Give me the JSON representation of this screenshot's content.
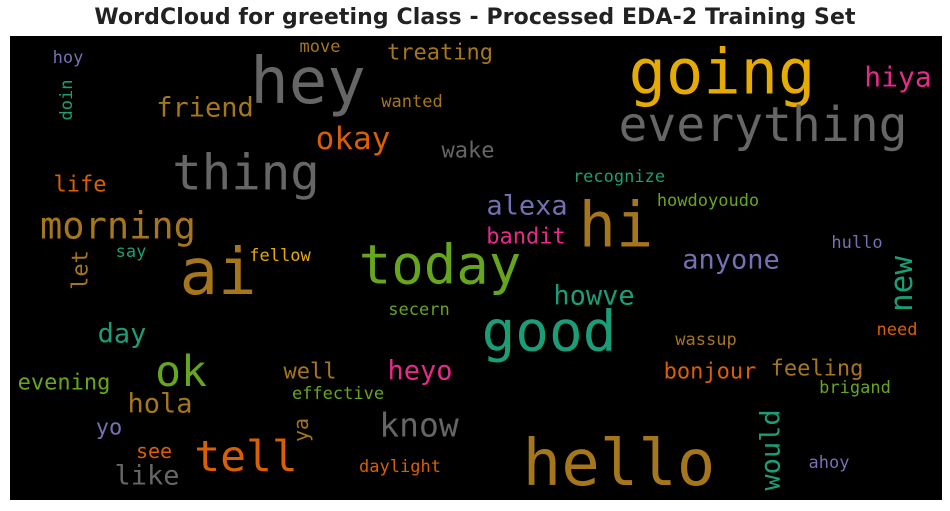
{
  "chart_data": {
    "type": "wordcloud",
    "title": "WordCloud for greeting Class - Processed EDA-2 Training Set",
    "background": "#000000",
    "words": [
      {
        "text": "hey",
        "color": "#666666"
      },
      {
        "text": "going",
        "color": "#e6ab02"
      },
      {
        "text": "everything",
        "color": "#666666"
      },
      {
        "text": "hiya",
        "color": "#e7298a"
      },
      {
        "text": "treating",
        "color": "#a6761d"
      },
      {
        "text": "move",
        "color": "#a6761d"
      },
      {
        "text": "hoy",
        "color": "#7570b3"
      },
      {
        "text": "doin",
        "color": "#1b9e77"
      },
      {
        "text": "friend",
        "color": "#a6761d"
      },
      {
        "text": "wanted",
        "color": "#a6761d"
      },
      {
        "text": "okay",
        "color": "#d95f02"
      },
      {
        "text": "wake",
        "color": "#666666"
      },
      {
        "text": "thing",
        "color": "#666666"
      },
      {
        "text": "life",
        "color": "#d95f02"
      },
      {
        "text": "recognize",
        "color": "#1b9e77"
      },
      {
        "text": "alexa",
        "color": "#7570b3"
      },
      {
        "text": "hi",
        "color": "#a6761d"
      },
      {
        "text": "howdoyoudo",
        "color": "#66a61e"
      },
      {
        "text": "morning",
        "color": "#a6761d"
      },
      {
        "text": "bandit",
        "color": "#e7298a"
      },
      {
        "text": "hullo",
        "color": "#7570b3"
      },
      {
        "text": "say",
        "color": "#1b9e77"
      },
      {
        "text": "fellow",
        "color": "#e6ab02"
      },
      {
        "text": "ai",
        "color": "#a6761d"
      },
      {
        "text": "today",
        "color": "#66a61e"
      },
      {
        "text": "anyone",
        "color": "#7570b3"
      },
      {
        "text": "let",
        "color": "#a6761d"
      },
      {
        "text": "new",
        "color": "#1b9e77"
      },
      {
        "text": "howve",
        "color": "#1b9e77"
      },
      {
        "text": "secern",
        "color": "#66a61e"
      },
      {
        "text": "good",
        "color": "#1b9e77"
      },
      {
        "text": "day",
        "color": "#1b9e77"
      },
      {
        "text": "wassup",
        "color": "#a6761d"
      },
      {
        "text": "need",
        "color": "#d95f02"
      },
      {
        "text": "ok",
        "color": "#66a61e"
      },
      {
        "text": "heyo",
        "color": "#e7298a"
      },
      {
        "text": "bonjour",
        "color": "#d95f02"
      },
      {
        "text": "feeling",
        "color": "#a6761d"
      },
      {
        "text": "evening",
        "color": "#66a61e"
      },
      {
        "text": "well",
        "color": "#a6761d"
      },
      {
        "text": "brigand",
        "color": "#66a61e"
      },
      {
        "text": "effective",
        "color": "#66a61e"
      },
      {
        "text": "hola",
        "color": "#a6761d"
      },
      {
        "text": "know",
        "color": "#666666"
      },
      {
        "text": "would",
        "color": "#1b9e77"
      },
      {
        "text": "yo",
        "color": "#7570b3"
      },
      {
        "text": "ya",
        "color": "#a6761d"
      },
      {
        "text": "tell",
        "color": "#d95f02"
      },
      {
        "text": "see",
        "color": "#d95f02"
      },
      {
        "text": "hello",
        "color": "#a6761d"
      },
      {
        "text": "ahoy",
        "color": "#7570b3"
      },
      {
        "text": "like",
        "color": "#666666"
      },
      {
        "text": "daylight",
        "color": "#d95f02"
      }
    ]
  }
}
